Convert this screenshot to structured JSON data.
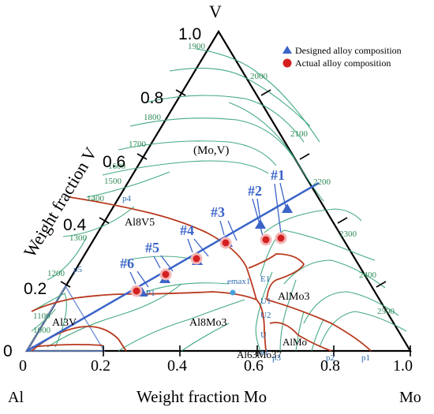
{
  "apex": {
    "top": "V",
    "left": "Al",
    "right": "Mo"
  },
  "axes": {
    "x_label": "Weight fraction Mo",
    "y_label": "Weight fraction V",
    "x_ticks": [
      "0",
      "0.2",
      "0.4",
      "0.6",
      "0.8",
      "1.0"
    ],
    "y_ticks": [
      "0",
      "0.2",
      "0.4",
      "0.6",
      "0.8",
      "1.0"
    ]
  },
  "legend": {
    "designed": "Designed alloy composition",
    "actual": "Actual alloy composition",
    "designed_color": "#3a64c8",
    "actual_color": "#d42020"
  },
  "isotherms": [
    "1000",
    "1100",
    "1200",
    "1300",
    "1400",
    "1500",
    "1600",
    "1700",
    "1800",
    "1900",
    "2000",
    "2100",
    "2200",
    "2300",
    "2400",
    "2500"
  ],
  "phases": {
    "mov": "(Mo,V)",
    "al8v5": "Al8V5",
    "al3v": "Al3V",
    "al8mo3": "Al8Mo3",
    "almo3": "AlMo3",
    "almo": "AlMo",
    "al63mo37": "Al63Mo37"
  },
  "points": {
    "p1a": "p1",
    "p1b": "P1",
    "p2": "p2",
    "p3": "p3",
    "p4": "p4",
    "p5": "p5",
    "e1": "E1",
    "e_low": "e1",
    "emax1": "emax1",
    "u1": "U1",
    "u2": "U2",
    "u3": "U"
  },
  "alloys": [
    "#1",
    "#2",
    "#3",
    "#4",
    "#5",
    "#6"
  ]
}
